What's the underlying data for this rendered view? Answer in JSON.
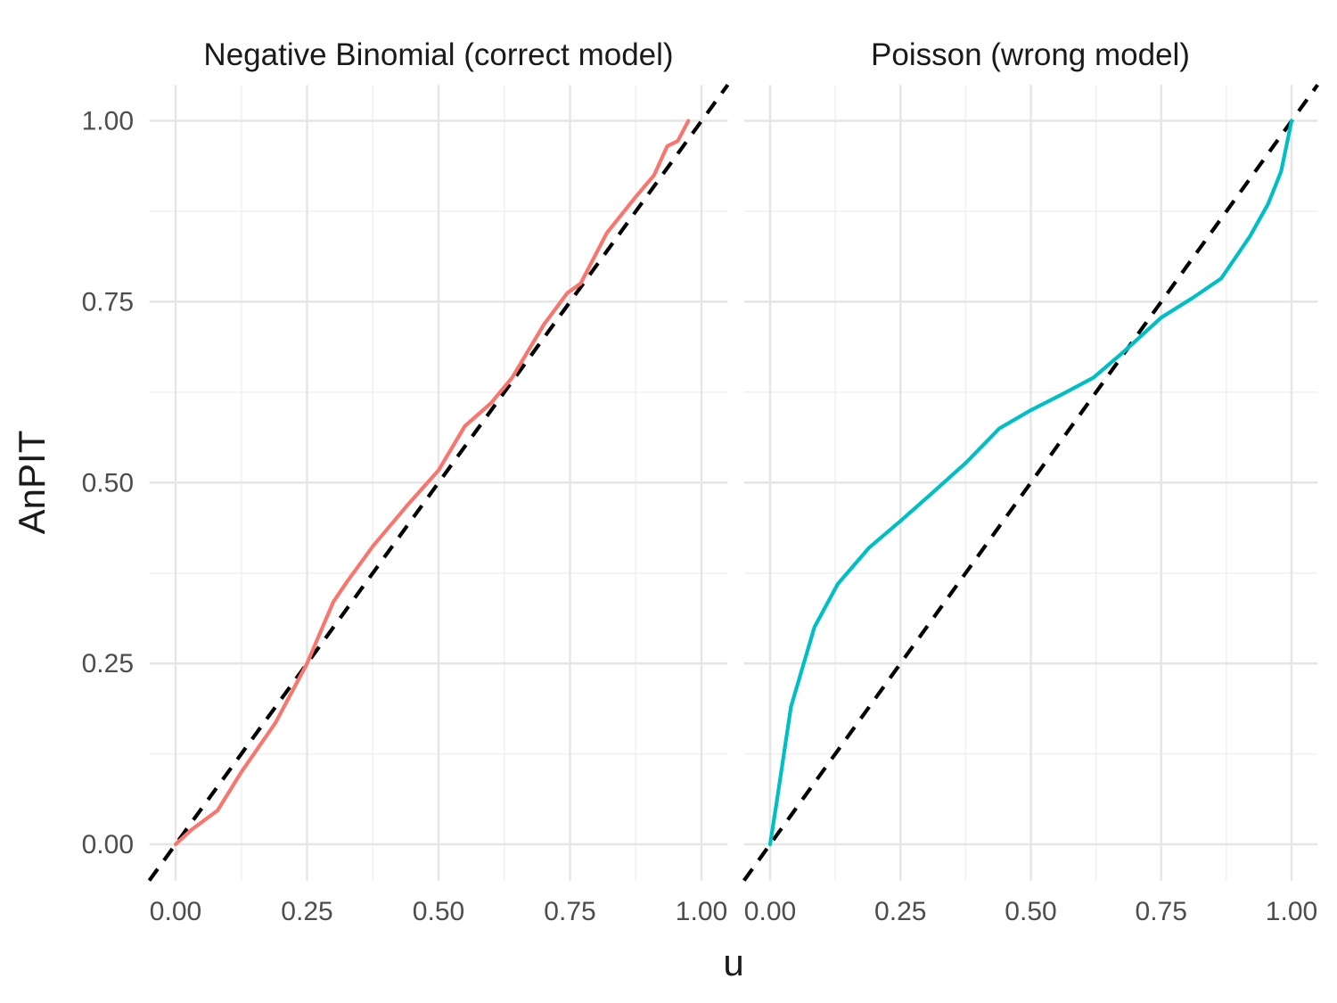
{
  "figure": {
    "background": "#ffffff",
    "kind": "faceted PIT line chart with identity reference"
  },
  "panels": [
    {
      "key": "negative-binomial",
      "title": "Negative Binomial (correct model)",
      "series_color": "#F8766D"
    },
    {
      "key": "poisson",
      "title": "Poisson (wrong model)",
      "series_color": "#00BFC4"
    }
  ],
  "axes": {
    "x": {
      "label": "u",
      "tick_labels": [
        "0.00",
        "0.25",
        "0.50",
        "0.75",
        "1.00"
      ],
      "tick_values": [
        0,
        0.25,
        0.5,
        0.75,
        1
      ],
      "minor_values": [
        0.125,
        0.375,
        0.625,
        0.875
      ],
      "range": [
        -0.05,
        1.05
      ]
    },
    "y": {
      "label": "AnPIT",
      "tick_labels": [
        "0.00",
        "0.25",
        "0.50",
        "0.75",
        "1.00"
      ],
      "tick_values": [
        0,
        0.25,
        0.5,
        0.75,
        1
      ],
      "minor_values": [
        0.125,
        0.375,
        0.625,
        0.875
      ],
      "range": [
        -0.05,
        1.05
      ]
    }
  },
  "reference_line": {
    "description": "y = x identity line",
    "color": "#000000",
    "style": "dashed"
  },
  "style": {
    "grid_major_color": "#E5E5E5",
    "grid_minor_color": "#F0F0F0",
    "tick_text_color": "#4d4d4d",
    "title_text_color": "#1a1a1a"
  },
  "chart_data": [
    {
      "type": "line",
      "name": "Negative Binomial (correct model)",
      "color": "#F8766D",
      "xlabel": "u",
      "ylabel": "AnPIT",
      "xlim": [
        0,
        1
      ],
      "ylim": [
        0,
        1
      ],
      "reference": "dashed identity line y=x spanning panel",
      "x": [
        0,
        0.03,
        0.08,
        0.125,
        0.19,
        0.25,
        0.3,
        0.325,
        0.375,
        0.44,
        0.5,
        0.55,
        0.6,
        0.64,
        0.7,
        0.745,
        0.77,
        0.82,
        0.875,
        0.91,
        0.935,
        0.955,
        0.975
      ],
      "y": [
        0,
        0.02,
        0.047,
        0.1,
        0.168,
        0.25,
        0.335,
        0.362,
        0.412,
        0.468,
        0.517,
        0.578,
        0.61,
        0.645,
        0.718,
        0.762,
        0.775,
        0.845,
        0.895,
        0.925,
        0.965,
        0.972,
        1.0
      ]
    },
    {
      "type": "line",
      "name": "Poisson (wrong model)",
      "color": "#00BFC4",
      "xlabel": "u",
      "ylabel": "AnPIT",
      "xlim": [
        0,
        1
      ],
      "ylim": [
        0,
        1
      ],
      "reference": "dashed identity line y=x spanning panel",
      "x": [
        0,
        0.013,
        0.04,
        0.085,
        0.13,
        0.19,
        0.25,
        0.31,
        0.375,
        0.44,
        0.5,
        0.56,
        0.62,
        0.68,
        0.75,
        0.81,
        0.865,
        0.92,
        0.955,
        0.98,
        0.99,
        1.0
      ],
      "y": [
        0,
        0.06,
        0.19,
        0.3,
        0.36,
        0.41,
        0.447,
        0.485,
        0.527,
        0.575,
        0.6,
        0.622,
        0.645,
        0.682,
        0.728,
        0.755,
        0.782,
        0.84,
        0.885,
        0.93,
        0.965,
        1.0
      ]
    }
  ]
}
